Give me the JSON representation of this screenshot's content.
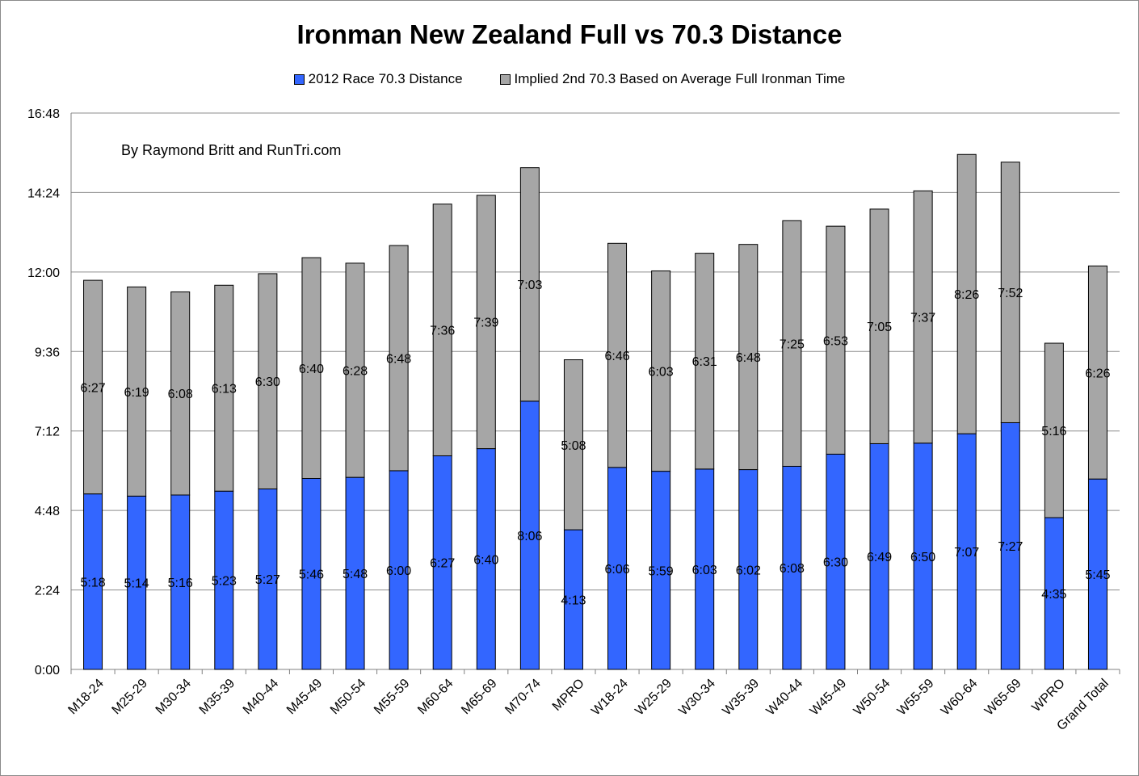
{
  "chart_data": {
    "type": "bar",
    "stacked": true,
    "title": "Ironman New Zealand Full vs 70.3 Distance",
    "annotation": "By Raymond Britt and RunTri.com",
    "y_ticks": [
      "0:00",
      "2:24",
      "4:48",
      "7:12",
      "9:36",
      "12:00",
      "14:24",
      "16:48"
    ],
    "y_unit": "hours:minutes",
    "ylim_minutes": [
      0,
      1008
    ],
    "grid": true,
    "legend_position": "top",
    "categories": [
      "M18-24",
      "M25-29",
      "M30-34",
      "M35-39",
      "M40-44",
      "M45-49",
      "M50-54",
      "M55-59",
      "M60-64",
      "M65-69",
      "M70-74",
      "MPRO",
      "W18-24",
      "W25-29",
      "W30-34",
      "W35-39",
      "W40-44",
      "W45-49",
      "W50-54",
      "W55-59",
      "W60-64",
      "W65-69",
      "WPRO",
      "Grand Total"
    ],
    "series": [
      {
        "name": "2012 Race 70.3 Distance",
        "color": "#3366ff",
        "labels": [
          "5:18",
          "5:14",
          "5:16",
          "5:23",
          "5:27",
          "5:46",
          "5:48",
          "6:00",
          "6:27",
          "6:40",
          "8:06",
          "4:13",
          "6:06",
          "5:59",
          "6:03",
          "6:02",
          "6:08",
          "6:30",
          "6:49",
          "6:50",
          "7:07",
          "7:27",
          "4:35",
          "5:45"
        ]
      },
      {
        "name": "Implied 2nd 70.3 Based on Average Full Ironman Time",
        "color": "#a6a6a6",
        "labels": [
          "6:27",
          "6:19",
          "6:08",
          "6:13",
          "6:30",
          "6:40",
          "6:28",
          "6:48",
          "7:36",
          "7:39",
          "7:03",
          "5:08",
          "6:46",
          "6:03",
          "6:31",
          "6:48",
          "7:25",
          "6:53",
          "7:05",
          "7:37",
          "8:26",
          "7:52",
          "5:16",
          "6:26"
        ]
      }
    ]
  }
}
